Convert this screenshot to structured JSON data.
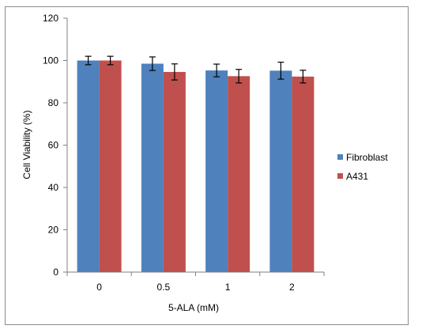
{
  "chart_data": {
    "type": "bar",
    "categories": [
      "0",
      "0.5",
      "1",
      "2"
    ],
    "series": [
      {
        "name": "Fibroblast",
        "color": "#4f81bd",
        "values": [
          100,
          98.5,
          95.3,
          95.2
        ],
        "errors": [
          2.0,
          3.2,
          3.0,
          4.0
        ]
      },
      {
        "name": "A431",
        "color": "#c0504d",
        "values": [
          100,
          94.6,
          92.6,
          92.4
        ],
        "errors": [
          2.0,
          3.8,
          3.2,
          3.0
        ]
      }
    ],
    "xlabel": "5-ALA (mM)",
    "ylabel": "Cell Viability (%)",
    "ylim": [
      0,
      120
    ],
    "yticks": [
      0,
      20,
      40,
      60,
      80,
      100,
      120
    ],
    "grid": false,
    "legend_position": "right"
  }
}
